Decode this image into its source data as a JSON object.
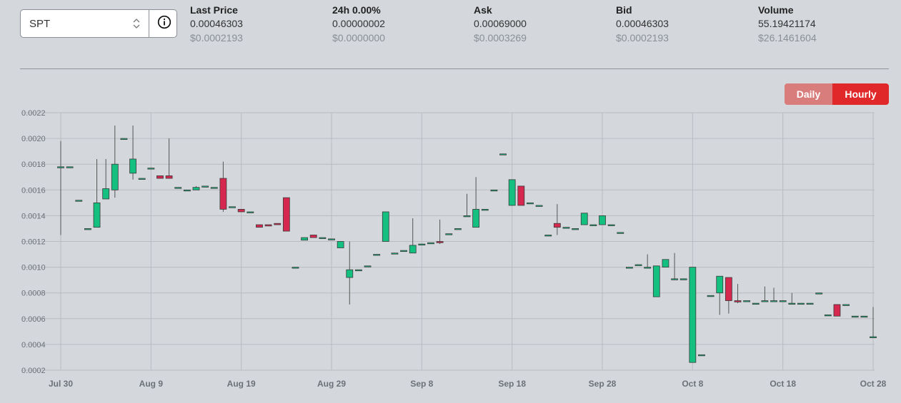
{
  "selector": {
    "value": "SPT"
  },
  "icons": {
    "updown": "chevron-updown-icon",
    "info": "info-icon"
  },
  "stats": [
    {
      "label": "Last Price",
      "value": "0.00046303",
      "usd": "$0.0002193"
    },
    {
      "label": "24h 0.00%",
      "value": "0.00000002",
      "usd": "$0.0000000"
    },
    {
      "label": "Ask",
      "value": "0.00069000",
      "usd": "$0.0003269"
    },
    {
      "label": "Bid",
      "value": "0.00046303",
      "usd": "$0.0002193"
    },
    {
      "label": "Volume",
      "value": "55.19421174",
      "usd": "$26.1461604"
    }
  ],
  "toggle": {
    "daily": "Daily",
    "hourly": "Hourly",
    "active": "hourly"
  },
  "colors": {
    "up": "#13c080",
    "down": "#d6284e",
    "active_button": "#e0282a",
    "inactive_button": "#d97c7c"
  },
  "chart_data": {
    "type": "candlestick",
    "xlabel": "",
    "ylabel": "",
    "ylim": [
      0.0002,
      0.0022
    ],
    "yticks": [
      "0.0002",
      "0.0004",
      "0.0006",
      "0.0008",
      "0.0010",
      "0.0012",
      "0.0014",
      "0.0016",
      "0.0018",
      "0.0020",
      "0.0022"
    ],
    "xticks": [
      {
        "label": "Jul 30",
        "day": 0
      },
      {
        "label": "Aug 9",
        "day": 10
      },
      {
        "label": "Aug 19",
        "day": 20
      },
      {
        "label": "Aug 29",
        "day": 30
      },
      {
        "label": "Sep 8",
        "day": 40
      },
      {
        "label": "Sep 18",
        "day": 50
      },
      {
        "label": "Sep 28",
        "day": 60
      },
      {
        "label": "Oct 8",
        "day": 70
      },
      {
        "label": "Oct 18",
        "day": 80
      },
      {
        "label": "Oct 28",
        "day": 90
      }
    ],
    "grid": true,
    "candles": [
      {
        "day": 0,
        "open": 0.00178,
        "high": 0.00198,
        "low": 0.00125,
        "close": 0.00178
      },
      {
        "day": 1,
        "open": 0.00178,
        "high": 0.00178,
        "low": 0.00178,
        "close": 0.00178
      },
      {
        "day": 2,
        "open": 0.00152,
        "high": 0.00152,
        "low": 0.00152,
        "close": 0.00152
      },
      {
        "day": 3,
        "open": 0.0013,
        "high": 0.0013,
        "low": 0.0013,
        "close": 0.0013
      },
      {
        "day": 4,
        "open": 0.00131,
        "high": 0.00184,
        "low": 0.00131,
        "close": 0.0015
      },
      {
        "day": 5,
        "open": 0.00153,
        "high": 0.00184,
        "low": 0.00153,
        "close": 0.00161
      },
      {
        "day": 6,
        "open": 0.0016,
        "high": 0.0021,
        "low": 0.00154,
        "close": 0.0018
      },
      {
        "day": 7,
        "open": 0.002,
        "high": 0.002,
        "low": 0.002,
        "close": 0.002
      },
      {
        "day": 8,
        "open": 0.00173,
        "high": 0.0021,
        "low": 0.00168,
        "close": 0.00184
      },
      {
        "day": 9,
        "open": 0.00169,
        "high": 0.00169,
        "low": 0.00169,
        "close": 0.00169
      },
      {
        "day": 10,
        "open": 0.00177,
        "high": 0.00177,
        "low": 0.00177,
        "close": 0.00177
      },
      {
        "day": 11,
        "open": 0.00171,
        "high": 0.00171,
        "low": 0.00169,
        "close": 0.00169
      },
      {
        "day": 12,
        "open": 0.00171,
        "high": 0.002,
        "low": 0.00169,
        "close": 0.00169
      },
      {
        "day": 13,
        "open": 0.00162,
        "high": 0.00162,
        "low": 0.00162,
        "close": 0.00162
      },
      {
        "day": 14,
        "open": 0.0016,
        "high": 0.0016,
        "low": 0.0016,
        "close": 0.0016
      },
      {
        "day": 15,
        "open": 0.0016,
        "high": 0.00163,
        "low": 0.0016,
        "close": 0.00162
      },
      {
        "day": 16,
        "open": 0.00163,
        "high": 0.00163,
        "low": 0.00163,
        "close": 0.00163
      },
      {
        "day": 17,
        "open": 0.00162,
        "high": 0.00162,
        "low": 0.00162,
        "close": 0.00162
      },
      {
        "day": 18,
        "open": 0.00169,
        "high": 0.00182,
        "low": 0.00143,
        "close": 0.00145
      },
      {
        "day": 19,
        "open": 0.00147,
        "high": 0.00147,
        "low": 0.00147,
        "close": 0.00147
      },
      {
        "day": 20,
        "open": 0.00145,
        "high": 0.00145,
        "low": 0.00143,
        "close": 0.00143
      },
      {
        "day": 21,
        "open": 0.00143,
        "high": 0.00143,
        "low": 0.00143,
        "close": 0.00143
      },
      {
        "day": 22,
        "open": 0.00133,
        "high": 0.00133,
        "low": 0.00131,
        "close": 0.00131
      },
      {
        "day": 23,
        "open": 0.00133,
        "high": 0.00133,
        "low": 0.00132,
        "close": 0.00132
      },
      {
        "day": 24,
        "open": 0.00134,
        "high": 0.00134,
        "low": 0.00133,
        "close": 0.00133
      },
      {
        "day": 25,
        "open": 0.00154,
        "high": 0.00154,
        "low": 0.00128,
        "close": 0.00128
      },
      {
        "day": 26,
        "open": 0.001,
        "high": 0.001,
        "low": 0.001,
        "close": 0.001
      },
      {
        "day": 27,
        "open": 0.00121,
        "high": 0.00123,
        "low": 0.00121,
        "close": 0.00123
      },
      {
        "day": 28,
        "open": 0.00125,
        "high": 0.00125,
        "low": 0.00123,
        "close": 0.00123
      },
      {
        "day": 29,
        "open": 0.00123,
        "high": 0.00123,
        "low": 0.00123,
        "close": 0.00123
      },
      {
        "day": 30,
        "open": 0.00122,
        "high": 0.00122,
        "low": 0.00122,
        "close": 0.00122
      },
      {
        "day": 31,
        "open": 0.00115,
        "high": 0.0012,
        "low": 0.00115,
        "close": 0.0012
      },
      {
        "day": 32,
        "open": 0.00092,
        "high": 0.0012,
        "low": 0.00071,
        "close": 0.00098
      },
      {
        "day": 33,
        "open": 0.00098,
        "high": 0.00098,
        "low": 0.00098,
        "close": 0.00098
      },
      {
        "day": 34,
        "open": 0.00101,
        "high": 0.00101,
        "low": 0.00101,
        "close": 0.00101
      },
      {
        "day": 35,
        "open": 0.0011,
        "high": 0.0011,
        "low": 0.0011,
        "close": 0.0011
      },
      {
        "day": 36,
        "open": 0.0012,
        "high": 0.00143,
        "low": 0.0012,
        "close": 0.00143
      },
      {
        "day": 37,
        "open": 0.00111,
        "high": 0.00111,
        "low": 0.00111,
        "close": 0.00111
      },
      {
        "day": 38,
        "open": 0.00113,
        "high": 0.00113,
        "low": 0.00113,
        "close": 0.00113
      },
      {
        "day": 39,
        "open": 0.00111,
        "high": 0.00138,
        "low": 0.00111,
        "close": 0.00117
      },
      {
        "day": 40,
        "open": 0.00118,
        "high": 0.00118,
        "low": 0.00118,
        "close": 0.00118
      },
      {
        "day": 41,
        "open": 0.00119,
        "high": 0.00119,
        "low": 0.00119,
        "close": 0.00119
      },
      {
        "day": 42,
        "open": 0.0012,
        "high": 0.00137,
        "low": 0.00118,
        "close": 0.00119
      },
      {
        "day": 43,
        "open": 0.00126,
        "high": 0.00126,
        "low": 0.00126,
        "close": 0.00126
      },
      {
        "day": 44,
        "open": 0.0013,
        "high": 0.0013,
        "low": 0.0013,
        "close": 0.0013
      },
      {
        "day": 45,
        "open": 0.0014,
        "high": 0.00157,
        "low": 0.0014,
        "close": 0.0014
      },
      {
        "day": 46,
        "open": 0.00131,
        "high": 0.0017,
        "low": 0.00131,
        "close": 0.00145
      },
      {
        "day": 47,
        "open": 0.00145,
        "high": 0.00145,
        "low": 0.00145,
        "close": 0.00145
      },
      {
        "day": 48,
        "open": 0.0016,
        "high": 0.0016,
        "low": 0.0016,
        "close": 0.0016
      },
      {
        "day": 49,
        "open": 0.00188,
        "high": 0.00188,
        "low": 0.00188,
        "close": 0.00188
      },
      {
        "day": 50,
        "open": 0.00148,
        "high": 0.00168,
        "low": 0.00148,
        "close": 0.00168
      },
      {
        "day": 51,
        "open": 0.00163,
        "high": 0.00163,
        "low": 0.00148,
        "close": 0.00148
      },
      {
        "day": 52,
        "open": 0.0015,
        "high": 0.0015,
        "low": 0.0015,
        "close": 0.0015
      },
      {
        "day": 53,
        "open": 0.00148,
        "high": 0.00148,
        "low": 0.00148,
        "close": 0.00148
      },
      {
        "day": 54,
        "open": 0.00125,
        "high": 0.00125,
        "low": 0.00125,
        "close": 0.00125
      },
      {
        "day": 55,
        "open": 0.00134,
        "high": 0.00149,
        "low": 0.00125,
        "close": 0.00131
      },
      {
        "day": 56,
        "open": 0.00131,
        "high": 0.00131,
        "low": 0.00131,
        "close": 0.00131
      },
      {
        "day": 57,
        "open": 0.0013,
        "high": 0.0013,
        "low": 0.0013,
        "close": 0.0013
      },
      {
        "day": 58,
        "open": 0.00133,
        "high": 0.00142,
        "low": 0.00133,
        "close": 0.00142
      },
      {
        "day": 59,
        "open": 0.00133,
        "high": 0.00133,
        "low": 0.00133,
        "close": 0.00133
      },
      {
        "day": 60,
        "open": 0.00133,
        "high": 0.0014,
        "low": 0.00133,
        "close": 0.0014
      },
      {
        "day": 61,
        "open": 0.00133,
        "high": 0.00133,
        "low": 0.00133,
        "close": 0.00133
      },
      {
        "day": 62,
        "open": 0.00127,
        "high": 0.00127,
        "low": 0.00127,
        "close": 0.00127
      },
      {
        "day": 63,
        "open": 0.001,
        "high": 0.001,
        "low": 0.001,
        "close": 0.001
      },
      {
        "day": 64,
        "open": 0.00102,
        "high": 0.00102,
        "low": 0.00102,
        "close": 0.00102
      },
      {
        "day": 65,
        "open": 0.001,
        "high": 0.0011,
        "low": 0.001,
        "close": 0.001
      },
      {
        "day": 66,
        "open": 0.00077,
        "high": 0.00101,
        "low": 0.00077,
        "close": 0.00101
      },
      {
        "day": 67,
        "open": 0.001,
        "high": 0.00106,
        "low": 0.001,
        "close": 0.00106
      },
      {
        "day": 68,
        "open": 0.00091,
        "high": 0.00111,
        "low": 0.0009,
        "close": 0.00091
      },
      {
        "day": 69,
        "open": 0.00091,
        "high": 0.00091,
        "low": 0.00091,
        "close": 0.00091
      },
      {
        "day": 70,
        "open": 0.00026,
        "high": 0.001,
        "low": 0.00026,
        "close": 0.001
      },
      {
        "day": 71,
        "open": 0.00032,
        "high": 0.00032,
        "low": 0.00032,
        "close": 0.00032
      },
      {
        "day": 72,
        "open": 0.00078,
        "high": 0.00078,
        "low": 0.00078,
        "close": 0.00078
      },
      {
        "day": 73,
        "open": 0.0008,
        "high": 0.00093,
        "low": 0.00063,
        "close": 0.00093
      },
      {
        "day": 74,
        "open": 0.00092,
        "high": 0.00092,
        "low": 0.00064,
        "close": 0.00074
      },
      {
        "day": 75,
        "open": 0.00074,
        "high": 0.00087,
        "low": 0.00072,
        "close": 0.00073
      },
      {
        "day": 76,
        "open": 0.00074,
        "high": 0.00074,
        "low": 0.00074,
        "close": 0.00074
      },
      {
        "day": 77,
        "open": 0.00072,
        "high": 0.00072,
        "low": 0.00072,
        "close": 0.00072
      },
      {
        "day": 78,
        "open": 0.00074,
        "high": 0.00085,
        "low": 0.00074,
        "close": 0.00074
      },
      {
        "day": 79,
        "open": 0.00074,
        "high": 0.00084,
        "low": 0.00074,
        "close": 0.00074
      },
      {
        "day": 80,
        "open": 0.00074,
        "high": 0.00074,
        "low": 0.00074,
        "close": 0.00074
      },
      {
        "day": 81,
        "open": 0.00072,
        "high": 0.0008,
        "low": 0.00072,
        "close": 0.00072
      },
      {
        "day": 82,
        "open": 0.00072,
        "high": 0.00072,
        "low": 0.00072,
        "close": 0.00072
      },
      {
        "day": 83,
        "open": 0.00072,
        "high": 0.00072,
        "low": 0.00072,
        "close": 0.00072
      },
      {
        "day": 84,
        "open": 0.0008,
        "high": 0.0008,
        "low": 0.0008,
        "close": 0.0008
      },
      {
        "day": 85,
        "open": 0.00063,
        "high": 0.00063,
        "low": 0.00063,
        "close": 0.00063
      },
      {
        "day": 86,
        "open": 0.00071,
        "high": 0.00071,
        "low": 0.00062,
        "close": 0.00062
      },
      {
        "day": 87,
        "open": 0.00071,
        "high": 0.00071,
        "low": 0.00071,
        "close": 0.00071
      },
      {
        "day": 88,
        "open": 0.00062,
        "high": 0.00062,
        "low": 0.00062,
        "close": 0.00062
      },
      {
        "day": 89,
        "open": 0.00062,
        "high": 0.00062,
        "low": 0.00062,
        "close": 0.00062
      },
      {
        "day": 90,
        "open": 0.00046,
        "high": 0.00069,
        "low": 0.00046,
        "close": 0.00046
      }
    ]
  }
}
